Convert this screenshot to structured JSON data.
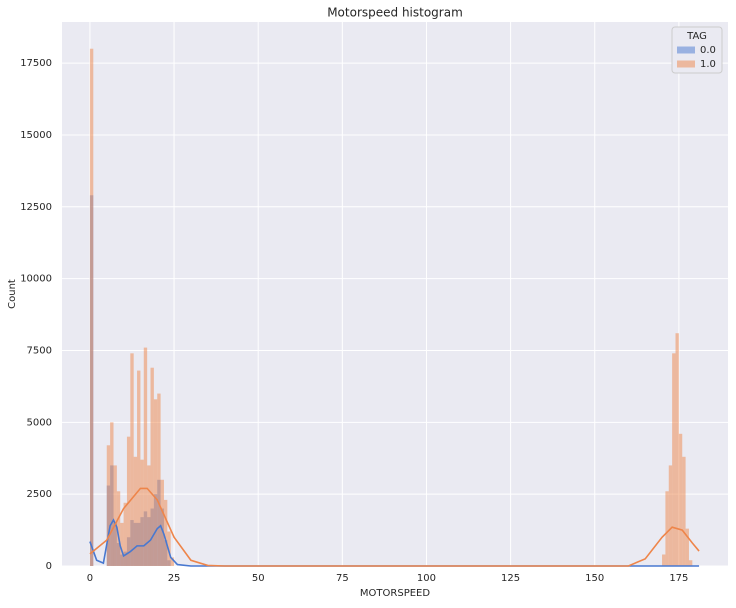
{
  "chart_data": {
    "type": "histogram",
    "title": "Motorspeed histogram",
    "x_label": "MOTORSPEED",
    "y_label": "Count",
    "legend_title": "TAG",
    "legend_position": "upper right",
    "grid": true,
    "xlim": [
      -8.3,
      189.6
    ],
    "ylim": [
      0,
      18930
    ],
    "xticks": [
      0,
      25,
      50,
      75,
      100,
      125,
      150,
      175
    ],
    "yticks": [
      0,
      2500,
      5000,
      7500,
      10000,
      12500,
      15000,
      17500
    ],
    "bins": [
      0,
      1,
      2,
      3,
      4,
      5,
      6,
      7,
      8,
      9,
      10,
      11,
      12,
      13,
      14,
      15,
      16,
      17,
      18,
      19,
      20,
      21,
      22,
      23,
      24,
      25,
      26,
      27,
      28,
      29,
      30,
      168,
      169,
      170,
      171,
      172,
      173,
      174,
      175,
      176,
      177,
      178,
      179,
      180,
      181
    ],
    "series": [
      {
        "name": "0.0",
        "color": "#4878d0",
        "values": [
          12900,
          0,
          0,
          0,
          0,
          2800,
          3500,
          1500,
          800,
          400,
          500,
          1000,
          1600,
          1500,
          1500,
          1700,
          1900,
          1700,
          2000,
          2500,
          3000,
          2000,
          900,
          200,
          0,
          0,
          0,
          0,
          0,
          0,
          0,
          0,
          0,
          0,
          0,
          0,
          0,
          0,
          0,
          0,
          0,
          0,
          0,
          0
        ],
        "kde": {
          "x": [
            0,
            2,
            4,
            6,
            7,
            8,
            9,
            10,
            12,
            14,
            16,
            18,
            20,
            21,
            22,
            24,
            26,
            30,
            60,
            181
          ],
          "values": [
            850,
            200,
            100,
            1400,
            1600,
            1350,
            700,
            350,
            500,
            700,
            700,
            900,
            1300,
            1400,
            1100,
            300,
            50,
            0,
            0,
            0
          ]
        }
      },
      {
        "name": "1.0",
        "color": "#ee854a",
        "values": [
          18000,
          0,
          0,
          0,
          0,
          4200,
          5000,
          3500,
          2600,
          1500,
          2200,
          4500,
          7400,
          3800,
          6800,
          3700,
          7600,
          3500,
          6900,
          5800,
          6000,
          3000,
          2300,
          1200,
          300,
          0,
          0,
          0,
          0,
          0,
          0,
          0,
          0,
          400,
          2600,
          3500,
          7400,
          8100,
          4600,
          3800,
          1300,
          200,
          0,
          0
        ],
        "kde": {
          "x": [
            0,
            5,
            10,
            15,
            17,
            20,
            25,
            30,
            35,
            40,
            100,
            160,
            165,
            170,
            173,
            176,
            179,
            181
          ],
          "values": [
            420,
            900,
            2000,
            2700,
            2700,
            2300,
            1000,
            200,
            20,
            0,
            0,
            0,
            250,
            1000,
            1350,
            1250,
            800,
            520
          ]
        }
      }
    ]
  }
}
